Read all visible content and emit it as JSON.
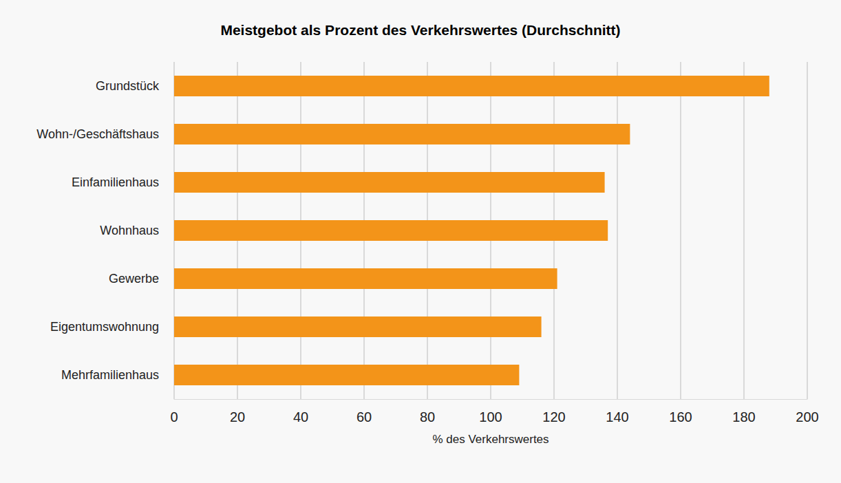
{
  "chart_data": {
    "type": "bar",
    "orientation": "horizontal",
    "title": "Meistgebot als Prozent des Verkehrswertes (Durchschnitt)",
    "xlabel": "% des Verkehrswertes",
    "categories": [
      "Grundstück",
      "Wohn-/Geschäftshaus",
      "Einfamilienhaus",
      "Wohnhaus",
      "Gewerbe",
      "Eigentumswohnung",
      "Mehrfamilienhaus"
    ],
    "values": [
      188,
      144,
      136,
      137,
      121,
      116,
      109
    ],
    "color": "#f39419",
    "xlim": [
      0,
      200
    ],
    "xticks": [
      0,
      20,
      40,
      60,
      80,
      100,
      120,
      140,
      160,
      180,
      200
    ],
    "grid": true
  }
}
